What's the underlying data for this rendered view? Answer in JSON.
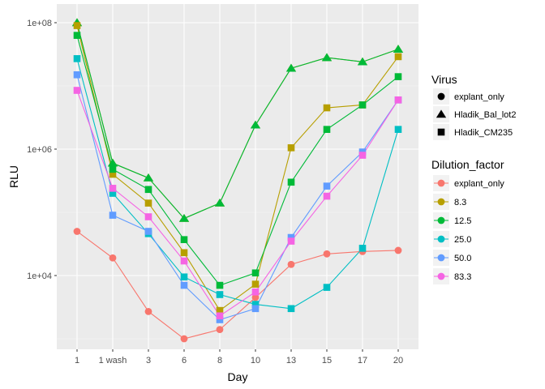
{
  "chart_data": {
    "type": "line",
    "title": "",
    "xlabel": "Day",
    "ylabel": "RLU",
    "y_scale": "log10",
    "ylim": [
      300,
      200000000
    ],
    "categories": [
      "1",
      "1 wash",
      "3",
      "6",
      "8",
      "10",
      "13",
      "15",
      "17",
      "20"
    ],
    "y_ticks": [
      {
        "value": 10000,
        "label": "1e+04"
      },
      {
        "value": 1000000,
        "label": "1e+06"
      },
      {
        "value": 100000000,
        "label": "1e+08"
      }
    ],
    "grid": true,
    "legend_position": "right",
    "legend": {
      "shape_title": "Virus",
      "shape_entries": [
        {
          "label": "explant_only",
          "shape": "circle"
        },
        {
          "label": "Hladik_Bal_lot2",
          "shape": "triangle"
        },
        {
          "label": "Hladik_CM235",
          "shape": "square"
        }
      ],
      "color_title": "Dilution_factor",
      "color_entries": [
        {
          "label": "explant_only",
          "color": "#F8766D"
        },
        {
          "label": "8.3",
          "color": "#B79F00"
        },
        {
          "label": "12.5",
          "color": "#00BA38"
        },
        {
          "label": "25.0",
          "color": "#00BFC4"
        },
        {
          "label": "50.0",
          "color": "#619CFF"
        },
        {
          "label": "83.3",
          "color": "#F564E3"
        }
      ]
    },
    "series": [
      {
        "virus": "explant_only",
        "dilution": "explant_only",
        "color": "#F8766D",
        "shape": "circle",
        "values": [
          50000,
          19000,
          2700,
          1000,
          1400,
          4500,
          15000,
          22000,
          24000,
          25000
        ]
      },
      {
        "virus": "Hladik_Bal_lot2",
        "dilution": "8.3",
        "color": "#B79F00",
        "shape": "triangle",
        "values": [
          100000000,
          600000,
          350000,
          80000,
          140000,
          2400000,
          19000000,
          28000000,
          24000000,
          38000000
        ]
      },
      {
        "virus": "Hladik_Bal_lot2",
        "dilution": "12.5",
        "color": "#00BA38",
        "shape": "triangle",
        "values": [
          100000000,
          600000,
          350000,
          80000,
          140000,
          2400000,
          19000000,
          28000000,
          24000000,
          38000000
        ]
      },
      {
        "virus": "Hladik_CM235",
        "dilution": "8.3",
        "color": "#B79F00",
        "shape": "square",
        "values": [
          90000000,
          400000,
          140000,
          23000,
          2800,
          7300,
          1050000,
          4500000,
          5000000,
          29000000
        ]
      },
      {
        "virus": "Hladik_CM235",
        "dilution": "12.5",
        "color": "#00BA38",
        "shape": "square",
        "values": [
          63000000,
          480000,
          230000,
          37000,
          7000,
          11000,
          300000,
          2050000,
          5000000,
          14000000
        ]
      },
      {
        "virus": "Hladik_CM235",
        "dilution": "25.0",
        "color": "#00BFC4",
        "shape": "square",
        "values": [
          27000000,
          200000,
          46000,
          9500,
          5000,
          3500,
          3000,
          6500,
          27000,
          2050000
        ]
      },
      {
        "virus": "Hladik_CM235",
        "dilution": "50.0",
        "color": "#619CFF",
        "shape": "square",
        "values": [
          15000000,
          90000,
          50000,
          7000,
          2000,
          3000,
          40000,
          260000,
          900000,
          6000000
        ]
      },
      {
        "virus": "Hladik_CM235",
        "dilution": "83.3",
        "color": "#F564E3",
        "shape": "square",
        "values": [
          8500000,
          240000,
          85000,
          17000,
          2300,
          5500,
          35000,
          180000,
          800000,
          6000000
        ]
      }
    ]
  }
}
